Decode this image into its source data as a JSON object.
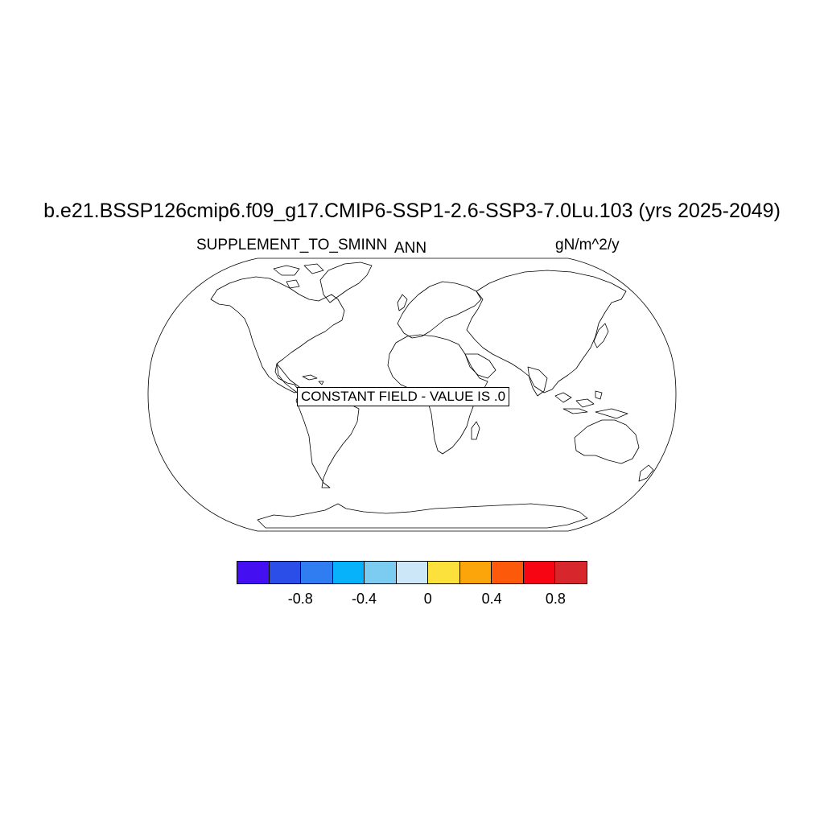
{
  "title": "b.e21.BSSP126cmip6.f09_g17.CMIP6-SSP1-2.6-SSP3-7.0Lu.103 (yrs 2025-2049)",
  "variable": "SUPPLEMENT_TO_SMINN",
  "season": "ANN",
  "units": "gN/m^2/y",
  "message": "CONSTANT FIELD - VALUE IS .0",
  "map": {
    "projection": "robinson",
    "field_value": 0.0
  },
  "colorbar": {
    "colors": [
      "#4410f2",
      "#2b4ee9",
      "#2f7df0",
      "#08b2fb",
      "#7ccbf0",
      "#cce8f8",
      "#fce03c",
      "#fca50a",
      "#fc5a0a",
      "#f70512",
      "#d7262c"
    ],
    "labels": [
      {
        "text": "-0.8",
        "boundary": 2
      },
      {
        "text": "-0.4",
        "boundary": 4
      },
      {
        "text": "0",
        "boundary": 6
      },
      {
        "text": "0.4",
        "boundary": 8
      },
      {
        "text": "0.8",
        "boundary": 10
      }
    ]
  }
}
